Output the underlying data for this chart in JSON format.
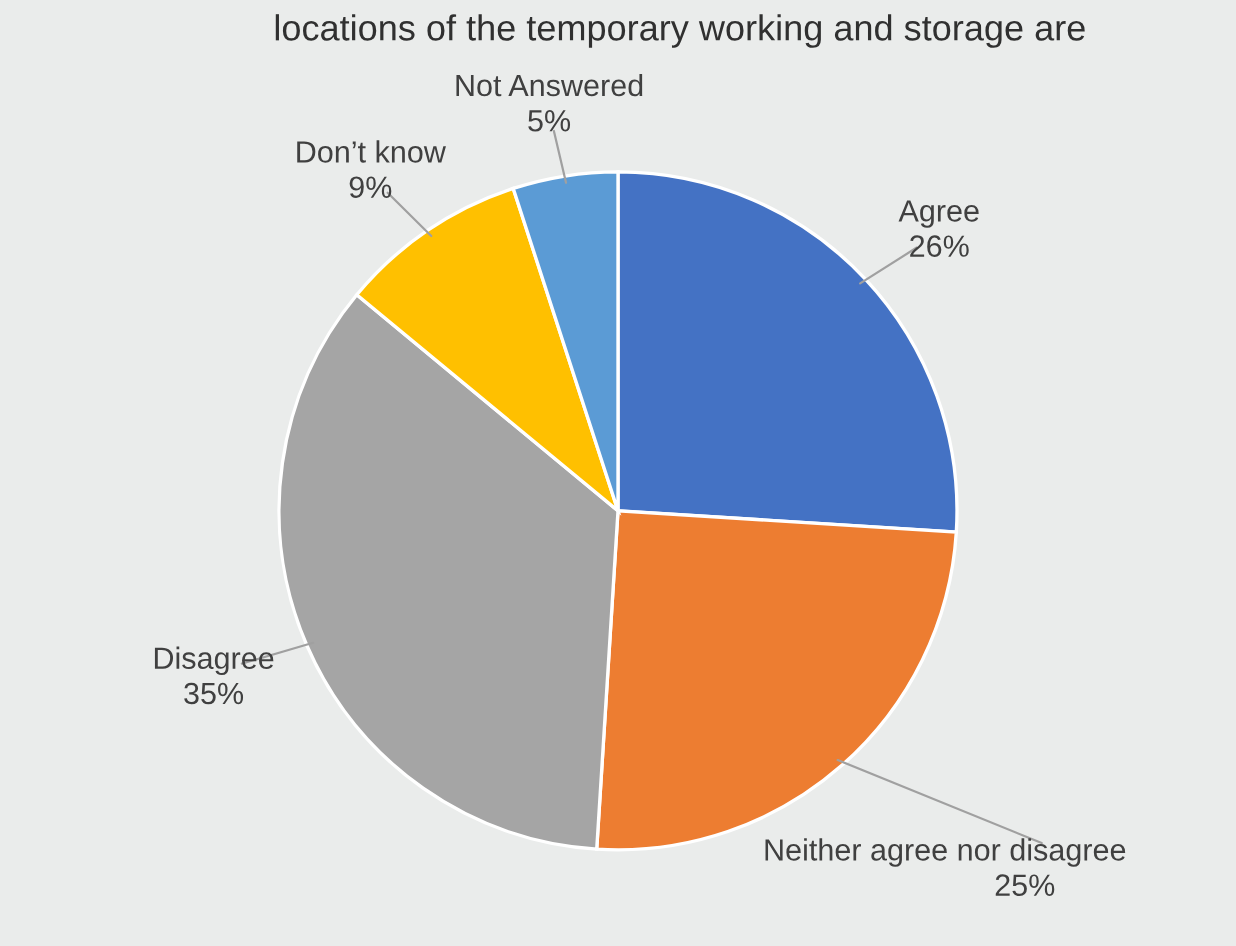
{
  "chart_data": {
    "type": "pie",
    "title": "locations of the temporary working and storage are",
    "categories": [
      "Agree",
      "Neither agree nor disagree",
      "Disagree",
      "Don’t know",
      "Not Answered"
    ],
    "values": [
      26,
      25,
      35,
      9,
      5
    ],
    "colors": [
      "#4472c4",
      "#ed7d31",
      "#a5a5a5",
      "#ffc000",
      "#5b9bd5"
    ],
    "value_labels": [
      "26%",
      "25%",
      "35%",
      "9%",
      "5%"
    ]
  }
}
